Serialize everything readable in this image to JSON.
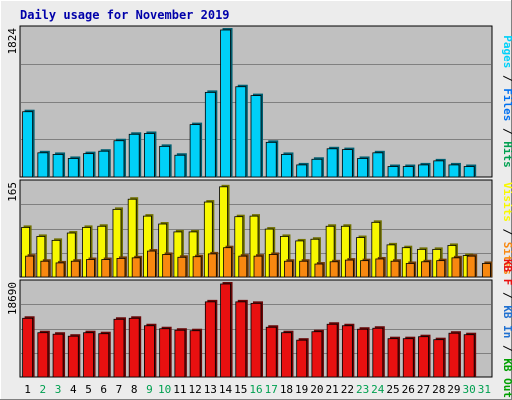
{
  "colors": {
    "page_bg": "#ececec",
    "panel_bg": "#c0c0c0",
    "title": "#0000aa",
    "pages": "#00d0f8",
    "files": "#0070f0",
    "hits": "#00a050",
    "visits": "#f8f800",
    "sites": "#f88810",
    "kb_f": "#e81010",
    "kb_in": "#2070d0",
    "kb_out": "#00a000",
    "weekday": "#000000",
    "weekend": "#00a050"
  },
  "chart_data": {
    "type": "bar",
    "title": "Daily usage for November 2019",
    "categories": [
      "1",
      "2",
      "3",
      "4",
      "5",
      "6",
      "7",
      "8",
      "9",
      "10",
      "11",
      "12",
      "13",
      "14",
      "15",
      "16",
      "17",
      "18",
      "19",
      "20",
      "21",
      "22",
      "23",
      "24",
      "25",
      "26",
      "27",
      "28",
      "29",
      "30",
      "31"
    ],
    "weekend_days": [
      2,
      3,
      9,
      10,
      16,
      17,
      23,
      24,
      30,
      31
    ],
    "panels": [
      {
        "id": "usage",
        "ymax": 1824,
        "ymax_label": "1824",
        "legend": [
          {
            "text": "Pages",
            "color_key": "pages"
          },
          {
            "text": " / ",
            "color_key": "weekday"
          },
          {
            "text": "Files",
            "color_key": "files"
          },
          {
            "text": " / ",
            "color_key": "weekday"
          },
          {
            "text": "Hits",
            "color_key": "hits"
          }
        ],
        "series": [
          {
            "name": "Pages",
            "color_key": "pages",
            "values": [
              810,
              300,
              280,
              230,
              290,
              320,
              450,
              530,
              540,
              380,
              270,
              650,
              1050,
              1824,
              1120,
              1010,
              430,
              280,
              150,
              220,
              350,
              340,
              230,
              300,
              130,
              130,
              150,
              200,
              150,
              130,
              null
            ]
          }
        ]
      },
      {
        "id": "visits",
        "ymax": 165,
        "ymax_label": "165",
        "legend": [
          {
            "text": "Visits",
            "color_key": "visits"
          },
          {
            "text": " / ",
            "color_key": "weekday"
          },
          {
            "text": "Sites",
            "color_key": "sites"
          }
        ],
        "series": [
          {
            "name": "Visits",
            "color_key": "visits",
            "values": [
              88,
              72,
              65,
              78,
              88,
              90,
              120,
              138,
              108,
              94,
              80,
              80,
              133,
              160,
              107,
              108,
              85,
              72,
              64,
              67,
              90,
              90,
              70,
              97,
              57,
              52,
              49,
              49,
              56,
              38,
              null
            ]
          },
          {
            "name": "Sites",
            "color_key": "sites",
            "values": [
              37,
              28,
              25,
              28,
              31,
              31,
              33,
              34,
              46,
              40,
              35,
              36,
              41,
              52,
              37,
              37,
              40,
              28,
              28,
              23,
              27,
              30,
              29,
              32,
              28,
              24,
              27,
              29,
              34,
              37,
              24
            ]
          }
        ]
      },
      {
        "id": "kbf",
        "ymax": 18690,
        "ymax_label": "18690",
        "legend": [
          {
            "text": "KB F",
            "color_key": "kb_f"
          },
          {
            "text": " / ",
            "color_key": "weekday"
          },
          {
            "text": "KB In",
            "color_key": "kb_in"
          },
          {
            "text": " / ",
            "color_key": "weekday"
          },
          {
            "text": "KB Out",
            "color_key": "kb_out"
          }
        ],
        "series": [
          {
            "name": "KB F",
            "color_key": "kb_f",
            "values": [
              11800,
              8900,
              8600,
              8200,
              8900,
              8700,
              11600,
              11800,
              10300,
              9700,
              9400,
              9300,
              15100,
              18690,
              15100,
              14800,
              10000,
              8900,
              7400,
              9100,
              10600,
              10300,
              9600,
              9800,
              7700,
              7700,
              8100,
              7500,
              8800,
              8500,
              null
            ]
          }
        ]
      }
    ]
  }
}
